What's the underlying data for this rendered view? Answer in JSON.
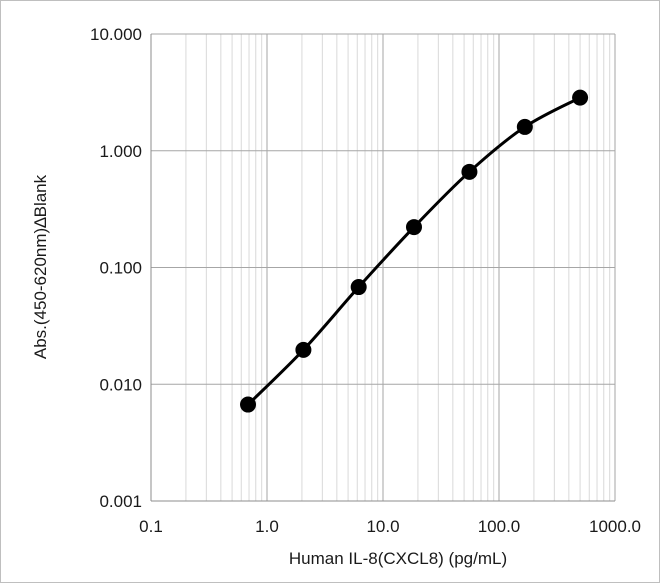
{
  "chart_data": {
    "type": "line",
    "xscale": "log",
    "yscale": "log",
    "xlabel": "Human IL-8(CXCL8) (pg/mL)",
    "ylabel": "Abs.(450-620nm)∆Blank",
    "xlim": [
      0.1,
      1000
    ],
    "ylim": [
      0.001,
      10
    ],
    "x_ticks": [
      0.1,
      1,
      10,
      100,
      1000
    ],
    "x_tick_labels": [
      "0.1",
      "1.0",
      "10.0",
      "100.0",
      "1000.0"
    ],
    "y_ticks": [
      0.001,
      0.01,
      0.1,
      1,
      10
    ],
    "y_tick_labels": [
      "0.001",
      "0.010",
      "0.100",
      "1.000",
      "10.000"
    ],
    "grid": true,
    "legend": "none",
    "series": [
      {
        "x": [
          0.686,
          2.06,
          6.17,
          18.5,
          55.6,
          167,
          500
        ],
        "y": [
          0.0067,
          0.0197,
          0.068,
          0.222,
          0.66,
          1.6,
          2.85
        ],
        "color": "#000000",
        "marker": "circle"
      }
    ]
  }
}
